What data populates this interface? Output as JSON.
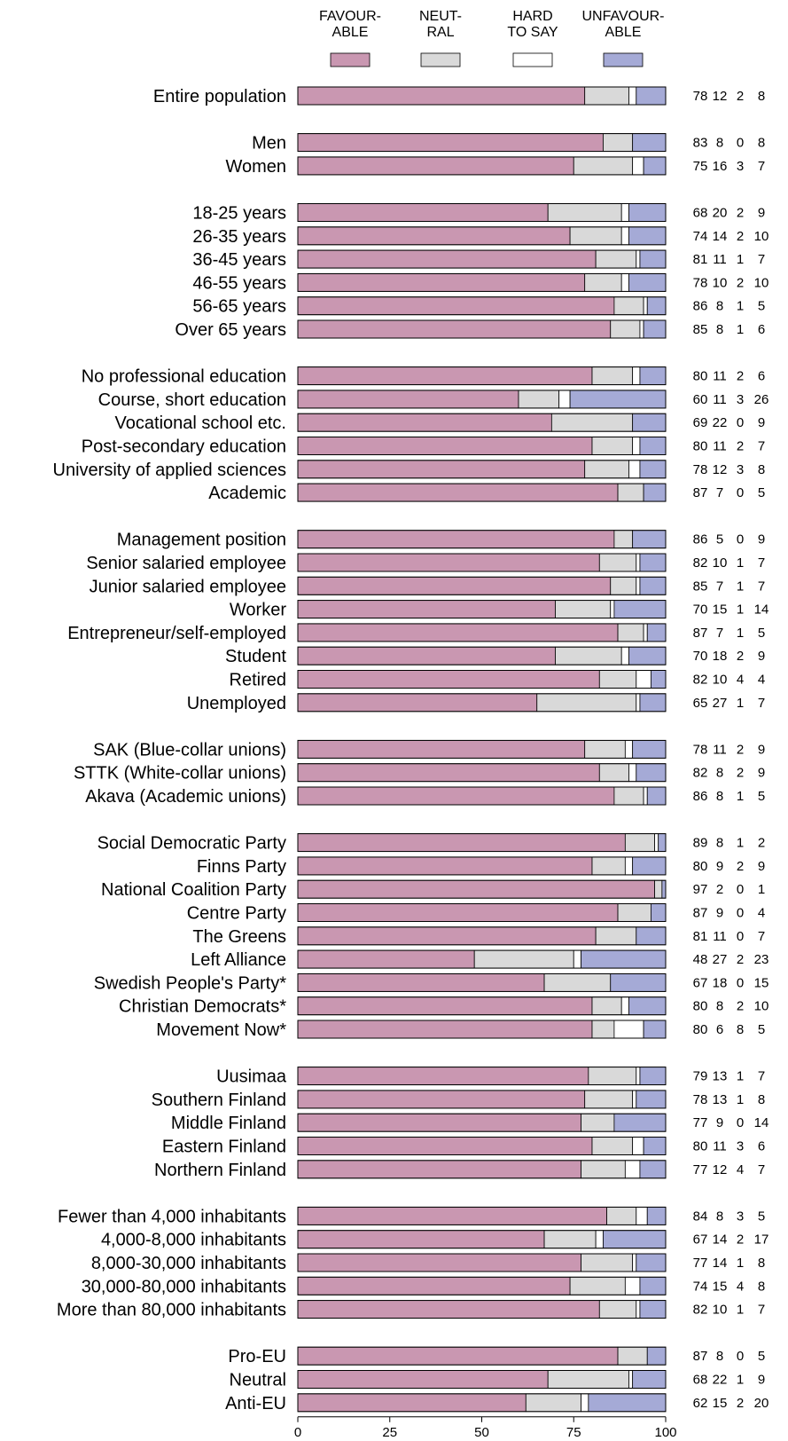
{
  "chart_data": {
    "type": "bar",
    "orientation": "horizontal",
    "stacked": true,
    "xlim": [
      0,
      100
    ],
    "x_ticks": [
      0,
      25,
      50,
      75,
      100
    ],
    "grid": false,
    "legend_position": "top",
    "series": [
      {
        "key": "fav",
        "legend_lines": [
          "FAVOUR-",
          "ABLE"
        ],
        "color": "#c997b1"
      },
      {
        "key": "neu",
        "legend_lines": [
          "NEUT-",
          "RAL"
        ],
        "color": "#d9d9d9"
      },
      {
        "key": "hard",
        "legend_lines": [
          "HARD",
          "TO SAY"
        ],
        "color": "#ffffff"
      },
      {
        "key": "unf",
        "legend_lines": [
          "UNFAVOUR-",
          "ABLE"
        ],
        "color": "#a5aad6"
      }
    ],
    "groups": [
      {
        "rows": [
          {
            "label": "Entire population",
            "values": [
              78,
              12,
              2,
              8
            ]
          }
        ]
      },
      {
        "rows": [
          {
            "label": "Men",
            "values": [
              83,
              8,
              0,
              8
            ]
          },
          {
            "label": "Women",
            "values": [
              75,
              16,
              3,
              7
            ]
          }
        ]
      },
      {
        "rows": [
          {
            "label": "18-25 years",
            "values": [
              68,
              20,
              2,
              9
            ]
          },
          {
            "label": "26-35 years",
            "values": [
              74,
              14,
              2,
              10
            ]
          },
          {
            "label": "36-45 years",
            "values": [
              81,
              11,
              1,
              7
            ]
          },
          {
            "label": "46-55 years",
            "values": [
              78,
              10,
              2,
              10
            ]
          },
          {
            "label": "56-65 years",
            "values": [
              86,
              8,
              1,
              5
            ]
          },
          {
            "label": "Over 65 years",
            "values": [
              85,
              8,
              1,
              6
            ]
          }
        ]
      },
      {
        "rows": [
          {
            "label": "No professional education",
            "values": [
              80,
              11,
              2,
              6
            ]
          },
          {
            "label": "Course, short education",
            "values": [
              60,
              11,
              3,
              26
            ]
          },
          {
            "label": "Vocational school etc.",
            "values": [
              69,
              22,
              0,
              9
            ]
          },
          {
            "label": "Post-secondary education",
            "values": [
              80,
              11,
              2,
              7
            ]
          },
          {
            "label": "University of applied sciences",
            "values": [
              78,
              12,
              3,
              8
            ]
          },
          {
            "label": "Academic",
            "values": [
              87,
              7,
              0,
              5
            ]
          }
        ]
      },
      {
        "rows": [
          {
            "label": "Management position",
            "values": [
              86,
              5,
              0,
              9
            ]
          },
          {
            "label": "Senior salaried employee",
            "values": [
              82,
              10,
              1,
              7
            ]
          },
          {
            "label": "Junior salaried employee",
            "values": [
              85,
              7,
              1,
              7
            ]
          },
          {
            "label": "Worker",
            "values": [
              70,
              15,
              1,
              14
            ]
          },
          {
            "label": "Entrepreneur/self-employed",
            "values": [
              87,
              7,
              1,
              5
            ]
          },
          {
            "label": "Student",
            "values": [
              70,
              18,
              2,
              9
            ]
          },
          {
            "label": "Retired",
            "values": [
              82,
              10,
              4,
              4
            ]
          },
          {
            "label": "Unemployed",
            "values": [
              65,
              27,
              1,
              7
            ]
          }
        ]
      },
      {
        "rows": [
          {
            "label": "SAK (Blue-collar unions)",
            "values": [
              78,
              11,
              2,
              9
            ]
          },
          {
            "label": "STTK (White-collar unions)",
            "values": [
              82,
              8,
              2,
              9
            ]
          },
          {
            "label": "Akava (Academic unions)",
            "values": [
              86,
              8,
              1,
              5
            ]
          }
        ]
      },
      {
        "rows": [
          {
            "label": "Social Democratic Party",
            "values": [
              89,
              8,
              1,
              2
            ]
          },
          {
            "label": "Finns Party",
            "values": [
              80,
              9,
              2,
              9
            ]
          },
          {
            "label": "National Coalition Party",
            "values": [
              97,
              2,
              0,
              1
            ]
          },
          {
            "label": "Centre Party",
            "values": [
              87,
              9,
              0,
              4
            ]
          },
          {
            "label": "The Greens",
            "values": [
              81,
              11,
              0,
              7
            ]
          },
          {
            "label": "Left Alliance",
            "values": [
              48,
              27,
              2,
              23
            ]
          },
          {
            "label": "Swedish People's Party*",
            "values": [
              67,
              18,
              0,
              15
            ]
          },
          {
            "label": "Christian Democrats*",
            "values": [
              80,
              8,
              2,
              10
            ]
          },
          {
            "label": "Movement Now*",
            "values": [
              80,
              6,
              8,
              5
            ]
          }
        ]
      },
      {
        "rows": [
          {
            "label": "Uusimaa",
            "values": [
              79,
              13,
              1,
              7
            ]
          },
          {
            "label": "Southern Finland",
            "values": [
              78,
              13,
              1,
              8
            ]
          },
          {
            "label": "Middle Finland",
            "values": [
              77,
              9,
              0,
              14
            ]
          },
          {
            "label": "Eastern Finland",
            "values": [
              80,
              11,
              3,
              6
            ]
          },
          {
            "label": "Northern Finland",
            "values": [
              77,
              12,
              4,
              7
            ]
          }
        ]
      },
      {
        "rows": [
          {
            "label": "Fewer than 4,000 inhabitants",
            "values": [
              84,
              8,
              3,
              5
            ]
          },
          {
            "label": "4,000-8,000 inhabitants",
            "values": [
              67,
              14,
              2,
              17
            ]
          },
          {
            "label": "8,000-30,000 inhabitants",
            "values": [
              77,
              14,
              1,
              8
            ]
          },
          {
            "label": "30,000-80,000 inhabitants",
            "values": [
              74,
              15,
              4,
              8
            ]
          },
          {
            "label": "More than 80,000 inhabitants",
            "values": [
              82,
              10,
              1,
              7
            ]
          }
        ]
      },
      {
        "rows": [
          {
            "label": "Pro-EU",
            "values": [
              87,
              8,
              0,
              5
            ]
          },
          {
            "label": "Neutral",
            "values": [
              68,
              22,
              1,
              9
            ]
          },
          {
            "label": "Anti-EU",
            "values": [
              62,
              15,
              2,
              20
            ]
          }
        ]
      }
    ]
  }
}
